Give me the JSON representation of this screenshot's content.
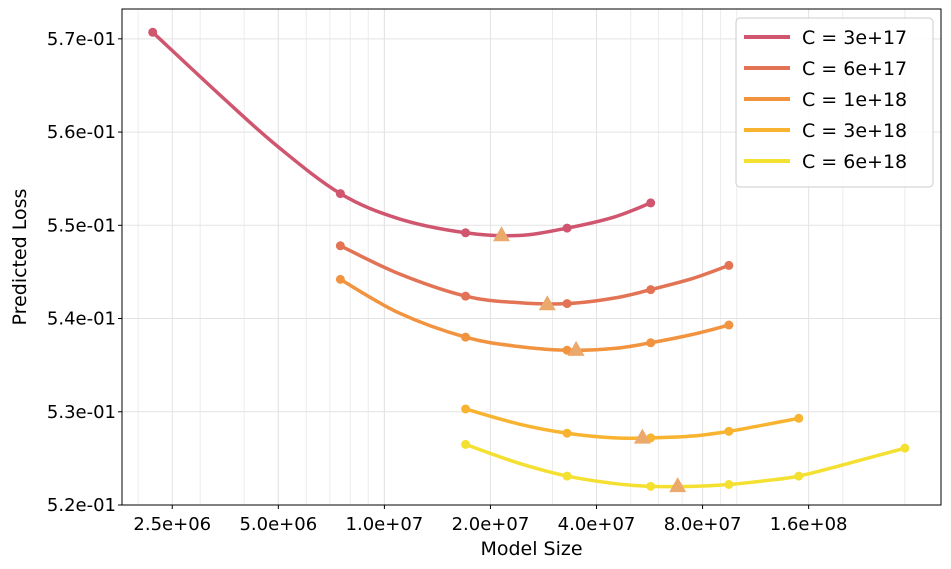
{
  "chart_data": {
    "type": "line",
    "xlabel": "Model Size",
    "ylabel": "Predicted Loss",
    "x_scale": "log",
    "xlim": [
      1800000,
      380000000
    ],
    "ylim": [
      0.52,
      0.5732
    ],
    "xticks": [
      {
        "value": 2500000,
        "label": "2.5e+06"
      },
      {
        "value": 5000000,
        "label": "5.0e+06"
      },
      {
        "value": 10000000,
        "label": "1.0e+07"
      },
      {
        "value": 20000000,
        "label": "2.0e+07"
      },
      {
        "value": 40000000,
        "label": "4.0e+07"
      },
      {
        "value": 80000000,
        "label": "8.0e+07"
      },
      {
        "value": 160000000,
        "label": "1.6e+08"
      }
    ],
    "yticks": [
      {
        "value": 0.52,
        "label": "5.2e-01"
      },
      {
        "value": 0.53,
        "label": "5.3e-01"
      },
      {
        "value": 0.54,
        "label": "5.4e-01"
      },
      {
        "value": 0.55,
        "label": "5.5e-01"
      },
      {
        "value": 0.56,
        "label": "5.6e-01"
      },
      {
        "value": 0.57,
        "label": "5.7e-01"
      }
    ],
    "grid": true,
    "legend_position": "top-right",
    "series": [
      {
        "name": "C = 3e+17",
        "color": "#d0566f",
        "points": [
          [
            2200000,
            0.5707
          ],
          [
            7500000,
            0.5534
          ],
          [
            17000000,
            0.5492
          ],
          [
            33000000,
            0.5497
          ],
          [
            57000000,
            0.5524
          ]
        ],
        "curve": [
          [
            2200000,
            0.5707
          ],
          [
            3500000,
            0.5636
          ],
          [
            5000000,
            0.5584
          ],
          [
            7500000,
            0.5534
          ],
          [
            11000000,
            0.5507
          ],
          [
            17000000,
            0.5492
          ],
          [
            24000000,
            0.5489
          ],
          [
            33000000,
            0.5497
          ],
          [
            45000000,
            0.5509
          ],
          [
            57000000,
            0.5524
          ]
        ],
        "optimum": [
          21500000,
          0.5489
        ]
      },
      {
        "name": "C = 6e+17",
        "color": "#e27354",
        "points": [
          [
            7500000,
            0.5478
          ],
          [
            17000000,
            0.5424
          ],
          [
            33000000,
            0.5416
          ],
          [
            57000000,
            0.5431
          ],
          [
            95000000,
            0.5457
          ]
        ],
        "curve": [
          [
            7500000,
            0.5478
          ],
          [
            11000000,
            0.5448
          ],
          [
            17000000,
            0.5424
          ],
          [
            24000000,
            0.5417
          ],
          [
            33000000,
            0.5416
          ],
          [
            45000000,
            0.5422
          ],
          [
            57000000,
            0.5431
          ],
          [
            75000000,
            0.5443
          ],
          [
            95000000,
            0.5457
          ]
        ],
        "optimum": [
          29000000,
          0.5415
        ]
      },
      {
        "name": "C = 1e+18",
        "color": "#f1933f",
        "points": [
          [
            7500000,
            0.5442
          ],
          [
            17000000,
            0.538
          ],
          [
            33000000,
            0.5366
          ],
          [
            57000000,
            0.5374
          ],
          [
            95000000,
            0.5393
          ]
        ],
        "curve": [
          [
            7500000,
            0.5442
          ],
          [
            11000000,
            0.5406
          ],
          [
            17000000,
            0.538
          ],
          [
            24000000,
            0.537
          ],
          [
            33000000,
            0.5366
          ],
          [
            45000000,
            0.5368
          ],
          [
            57000000,
            0.5374
          ],
          [
            75000000,
            0.5383
          ],
          [
            95000000,
            0.5393
          ]
        ],
        "optimum": [
          35000000,
          0.5366
        ]
      },
      {
        "name": "C = 3e+18",
        "color": "#f8b431",
        "points": [
          [
            17000000,
            0.5303
          ],
          [
            33000000,
            0.5277
          ],
          [
            57000000,
            0.5272
          ],
          [
            95000000,
            0.5279
          ],
          [
            150000000,
            0.5293
          ]
        ],
        "curve": [
          [
            17000000,
            0.5303
          ],
          [
            24000000,
            0.5287
          ],
          [
            33000000,
            0.5277
          ],
          [
            45000000,
            0.5272
          ],
          [
            57000000,
            0.5272
          ],
          [
            75000000,
            0.5274
          ],
          [
            95000000,
            0.5279
          ],
          [
            120000000,
            0.5286
          ],
          [
            150000000,
            0.5293
          ]
        ],
        "optimum": [
          54000000,
          0.5272
        ]
      },
      {
        "name": "C = 6e+18",
        "color": "#f4e030",
        "points": [
          [
            17000000,
            0.5265
          ],
          [
            33000000,
            0.5231
          ],
          [
            57000000,
            0.522
          ],
          [
            95000000,
            0.5222
          ],
          [
            150000000,
            0.5231
          ],
          [
            300000000,
            0.5261
          ]
        ],
        "curve": [
          [
            17000000,
            0.5265
          ],
          [
            24000000,
            0.5245
          ],
          [
            33000000,
            0.5231
          ],
          [
            45000000,
            0.5223
          ],
          [
            57000000,
            0.522
          ],
          [
            75000000,
            0.522
          ],
          [
            95000000,
            0.5222
          ],
          [
            120000000,
            0.5226
          ],
          [
            150000000,
            0.5231
          ],
          [
            200000000,
            0.5243
          ],
          [
            300000000,
            0.5261
          ]
        ],
        "optimum": [
          68000000,
          0.522
        ]
      }
    ],
    "optimum_marker_color": "#eba96c"
  }
}
